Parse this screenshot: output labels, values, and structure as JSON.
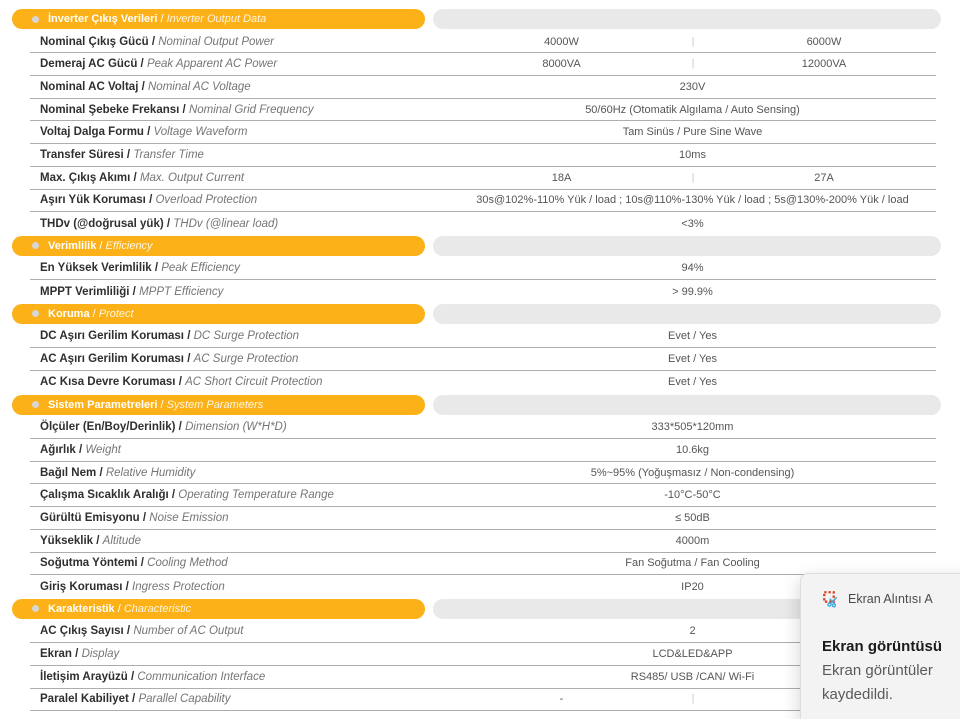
{
  "ui_colors": {
    "section_orange": "#FBB117",
    "section_tail_gray": "#E9E9E9",
    "row_line_gray": "#ADADAD",
    "toast_bg": "#F3F3F3"
  },
  "table": {
    "sections": [
      {
        "title_tr": "İnverter Çıkış Verileri",
        "title_en": "Inverter Output Data",
        "rows": [
          {
            "label_tr": "Nominal Çıkış Gücü",
            "label_en": "Nominal Output Power",
            "cols": [
              "4000W",
              "6000W"
            ]
          },
          {
            "label_tr": "Demeraj AC Gücü",
            "label_en": "Peak Apparent AC Power",
            "cols": [
              "8000VA",
              "12000VA"
            ]
          },
          {
            "label_tr": "Nominal AC Voltaj",
            "label_en": "Nominal AC Voltage",
            "value": "230V"
          },
          {
            "label_tr": "Nominal Şebeke Frekansı",
            "label_en": "Nominal Grid Frequency",
            "value": "50/60Hz (Otomatik Algılama / Auto Sensing)"
          },
          {
            "label_tr": "Voltaj Dalga Formu",
            "label_en": "Voltage Waveform",
            "value": "Tam Sinüs / Pure Sine Wave"
          },
          {
            "label_tr": "Transfer Süresi",
            "label_en": "Transfer Time",
            "value": "10ms"
          },
          {
            "label_tr": "Max. Çıkış Akımı",
            "label_en": "Max. Output Current",
            "cols": [
              "18A",
              "27A"
            ]
          },
          {
            "label_tr": "Aşırı Yük Koruması",
            "label_en": "Overload Protection",
            "value": "30s@102%-110%  Yük / load ; 10s@110%-130% Yük / load ; 5s@130%-200% Yük / load"
          },
          {
            "label_tr": "THDv (@doğrusal yük)",
            "label_en": "THDv (@linear load)",
            "value": "<3%"
          }
        ]
      },
      {
        "title_tr": "Verimlilik",
        "title_en": "Efficiency",
        "rows": [
          {
            "label_tr": "En Yüksek Verimlilik",
            "label_en": "Peak Efficiency",
            "value": "94%"
          },
          {
            "label_tr": "MPPT Verimliliği",
            "label_en": "MPPT Efficiency",
            "value": "> 99.9%"
          }
        ]
      },
      {
        "title_tr": "Koruma",
        "title_en": "Protect",
        "rows": [
          {
            "label_tr": "DC Aşırı Gerilim Koruması",
            "label_en": "DC Surge Protection",
            "value": "Evet / Yes"
          },
          {
            "label_tr": "AC Aşırı Gerilim Koruması",
            "label_en": "AC Surge Protection",
            "value": "Evet / Yes"
          },
          {
            "label_tr": "AC Kısa Devre Koruması",
            "label_en": "AC Short Circuit Protection",
            "value": "Evet / Yes"
          }
        ]
      },
      {
        "title_tr": "Sistem Parametreleri",
        "title_en": "System Parameters",
        "rows": [
          {
            "label_tr": "Ölçüler (En/Boy/Derinlik)",
            "label_en": "Dimension (W*H*D)",
            "value": "333*505*120mm"
          },
          {
            "label_tr": "Ağırlık",
            "label_en": "Weight",
            "value": "10.6kg"
          },
          {
            "label_tr": "Bağıl Nem",
            "label_en": "Relative Humidity",
            "value": "5%~95% (Yoğuşmasız / Non-condensing)"
          },
          {
            "label_tr": "Çalışma Sıcaklık Aralığı",
            "label_en": "Operating Temperature Range",
            "value": "-10°C-50°C"
          },
          {
            "label_tr": "Gürültü Emisyonu",
            "label_en": "Noise Emission",
            "value": "≤ 50dB"
          },
          {
            "label_tr": "Yükseklik",
            "label_en": "Altitude",
            "value": "4000m"
          },
          {
            "label_tr": "Soğutma Yöntemi",
            "label_en": "Cooling Method",
            "value": "Fan Soğutma / Fan Cooling"
          },
          {
            "label_tr": "Giriş Koruması",
            "label_en": "Ingress Protection",
            "value": "IP20"
          }
        ]
      },
      {
        "title_tr": "Karakteristik",
        "title_en": "Characteristic",
        "rows": [
          {
            "label_tr": "AC Çıkış Sayısı",
            "label_en": "Number of AC Output",
            "value": "2"
          },
          {
            "label_tr": "Ekran",
            "label_en": "Display",
            "value": "LCD&LED&APP"
          },
          {
            "label_tr": "İletişim Arayüzü",
            "label_en": "Communication Interface",
            "value": "RS485/ USB /CAN/ Wi-Fi"
          },
          {
            "label_tr": "Paralel Kabiliyet",
            "label_en": "Parallel Capability",
            "cols": [
              "-",
              ""
            ]
          }
        ]
      }
    ]
  },
  "notification": {
    "icon": "snipping-tool-icon",
    "app_name": "Ekran Alıntısı A",
    "title": "Ekran görüntüsü",
    "body_line1": "Ekran görüntüler",
    "body_line2": "kaydedildi."
  }
}
